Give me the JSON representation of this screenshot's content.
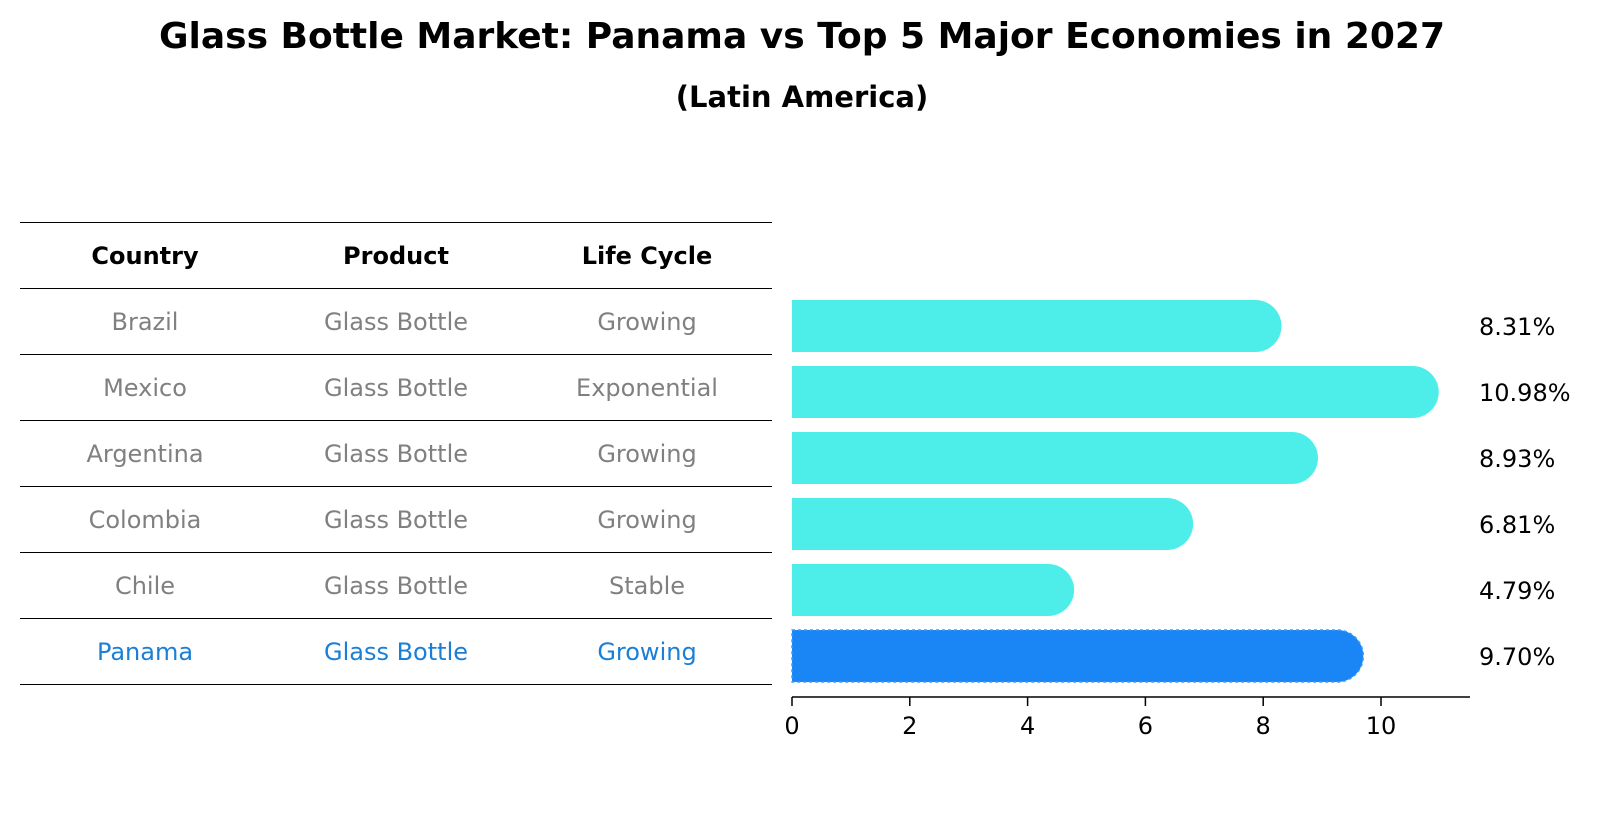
{
  "title": "Glass Bottle Market: Panama vs Top 5 Major Economies in 2027",
  "subtitle": "(Latin America)",
  "table": {
    "headers": [
      "Country",
      "Product",
      "Life Cycle"
    ],
    "rows": [
      {
        "country": "Brazil",
        "product": "Glass Bottle",
        "life_cycle": "Growing"
      },
      {
        "country": "Mexico",
        "product": "Glass Bottle",
        "life_cycle": "Exponential"
      },
      {
        "country": "Argentina",
        "product": "Glass Bottle",
        "life_cycle": "Growing"
      },
      {
        "country": "Colombia",
        "product": "Glass Bottle",
        "life_cycle": "Growing"
      },
      {
        "country": "Chile",
        "product": "Glass Bottle",
        "life_cycle": "Stable"
      },
      {
        "country": "Panama",
        "product": "Glass Bottle",
        "life_cycle": "Growing"
      }
    ]
  },
  "chart_data": {
    "type": "bar",
    "orientation": "horizontal",
    "title": "Glass Bottle Market: Panama vs Top 5 Major Economies in 2027",
    "subtitle": "(Latin America)",
    "categories": [
      "Brazil",
      "Mexico",
      "Argentina",
      "Colombia",
      "Chile",
      "Panama"
    ],
    "values": [
      8.31,
      10.98,
      8.93,
      6.81,
      4.79,
      9.7
    ],
    "value_labels": [
      "8.31%",
      "10.98%",
      "8.93%",
      "6.81%",
      "4.79%",
      "9.70%"
    ],
    "highlight": "Panama",
    "xlim": [
      0,
      11.5
    ],
    "xticks": [
      0,
      2,
      4,
      6,
      8,
      10
    ],
    "xlabel": "",
    "ylabel": "",
    "grid": false,
    "colors": {
      "default": "#4deeea",
      "highlight": "#1a85f5",
      "highlight_text": "#1a7fd6",
      "muted_text": "#808080"
    }
  }
}
